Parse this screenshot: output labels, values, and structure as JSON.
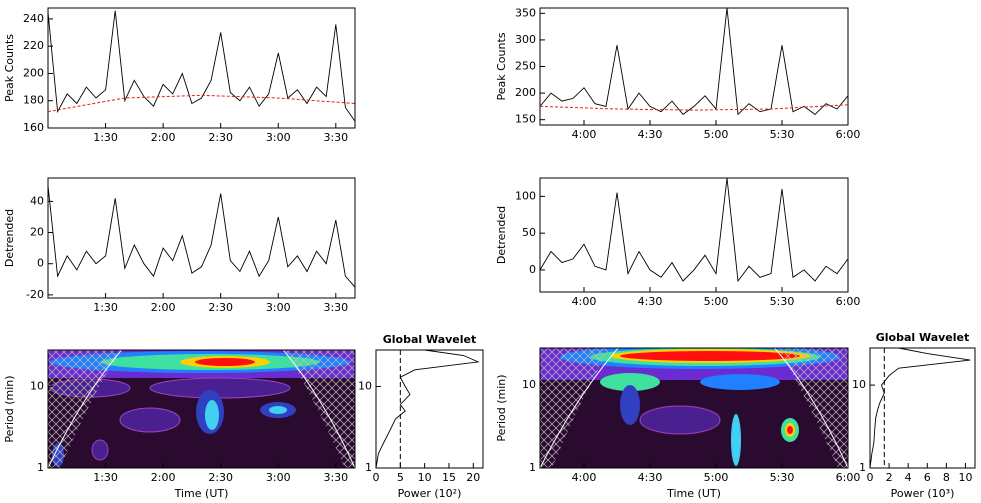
{
  "chart_data": [
    {
      "type": "line",
      "y_label": "Peak Counts",
      "xlim": [
        60,
        220
      ],
      "ylim": [
        160,
        248
      ],
      "xticks": [
        {
          "value": 90,
          "label": "1:30"
        },
        {
          "value": 120,
          "label": "2:00"
        },
        {
          "value": 150,
          "label": "2:30"
        },
        {
          "value": 180,
          "label": "3:00"
        },
        {
          "value": 210,
          "label": "3:30"
        }
      ],
      "yticks": [
        160,
        180,
        200,
        220,
        240
      ],
      "series": [
        {
          "color": "#000000",
          "x": [
            60,
            65,
            70,
            75,
            80,
            85,
            90,
            95,
            100,
            105,
            110,
            115,
            120,
            125,
            130,
            135,
            140,
            145,
            150,
            155,
            160,
            165,
            170,
            175,
            180,
            185,
            190,
            195,
            200,
            205,
            210,
            215,
            220
          ],
          "values": [
            245,
            172,
            185,
            178,
            190,
            182,
            188,
            246,
            180,
            195,
            183,
            176,
            192,
            185,
            200,
            178,
            182,
            195,
            230,
            186,
            180,
            190,
            176,
            185,
            215,
            182,
            188,
            178,
            190,
            183,
            236,
            175,
            165
          ]
        },
        {
          "color": "#e02020",
          "x": [
            60,
            100,
            140,
            180,
            220
          ],
          "values": [
            172,
            182,
            184,
            182,
            178
          ]
        }
      ]
    },
    {
      "type": "line",
      "y_label": "Detrended",
      "xlim": [
        60,
        220
      ],
      "ylim": [
        -22,
        55
      ],
      "xticks": [
        {
          "value": 90,
          "label": "1:30"
        },
        {
          "value": 120,
          "label": "2:00"
        },
        {
          "value": 150,
          "label": "2:30"
        },
        {
          "value": 180,
          "label": "3:00"
        },
        {
          "value": 210,
          "label": "3:30"
        }
      ],
      "yticks": [
        -20,
        0,
        20,
        40
      ],
      "series": [
        {
          "color": "#000000",
          "x": [
            60,
            65,
            70,
            75,
            80,
            85,
            90,
            95,
            100,
            105,
            110,
            115,
            120,
            125,
            130,
            135,
            140,
            145,
            150,
            155,
            160,
            165,
            170,
            175,
            180,
            185,
            190,
            195,
            200,
            205,
            210,
            215,
            220
          ],
          "values": [
            50,
            -8,
            5,
            -4,
            8,
            0,
            5,
            42,
            -3,
            12,
            0,
            -8,
            10,
            2,
            18,
            -6,
            -2,
            12,
            45,
            2,
            -5,
            8,
            -8,
            2,
            30,
            -2,
            5,
            -5,
            8,
            0,
            28,
            -8,
            -15
          ]
        }
      ]
    },
    {
      "type": "wavelet",
      "x_label": "Time (UT)",
      "y_label": "Period (min)",
      "log_y": true,
      "xlim": [
        60,
        220
      ],
      "ylim": [
        1,
        28
      ],
      "xticks": [
        {
          "value": 90,
          "label": "1:30"
        },
        {
          "value": 120,
          "label": "2:00"
        },
        {
          "value": 150,
          "label": "2:30"
        },
        {
          "value": 180,
          "label": "3:00"
        },
        {
          "value": 210,
          "label": "3:30"
        }
      ],
      "yticks": [
        1,
        10
      ]
    },
    {
      "type": "line",
      "title": "Global Wavelet",
      "x_label": "Power (10²)",
      "log_y": true,
      "xlim": [
        0,
        22
      ],
      "ylim": [
        1,
        28
      ],
      "xticks": [
        0,
        5,
        10,
        15,
        20
      ],
      "yticks": [
        1,
        10
      ],
      "threshold": 5,
      "series": [
        {
          "color": "#000000",
          "x": [
            0,
            0.5,
            1.5,
            3,
            4,
            6,
            5,
            7,
            6,
            5,
            8,
            21,
            18,
            10
          ],
          "values": [
            1,
            1.5,
            2,
            3,
            4,
            5,
            6,
            8,
            10,
            13,
            16,
            20,
            24,
            28
          ]
        }
      ]
    },
    {
      "type": "line",
      "y_label": "Peak Counts",
      "xlim": [
        220,
        360
      ],
      "ylim": [
        140,
        360
      ],
      "xticks": [
        {
          "value": 240,
          "label": "4:00"
        },
        {
          "value": 270,
          "label": "4:30"
        },
        {
          "value": 300,
          "label": "5:00"
        },
        {
          "value": 330,
          "label": "5:30"
        },
        {
          "value": 360,
          "label": "6:00"
        }
      ],
      "yticks": [
        150,
        200,
        250,
        300,
        350
      ],
      "series": [
        {
          "color": "#000000",
          "x": [
            220,
            225,
            230,
            235,
            240,
            245,
            250,
            255,
            260,
            265,
            270,
            275,
            280,
            285,
            290,
            295,
            300,
            305,
            310,
            315,
            320,
            325,
            330,
            335,
            340,
            345,
            350,
            355,
            360
          ],
          "values": [
            175,
            200,
            185,
            190,
            210,
            180,
            175,
            290,
            170,
            200,
            175,
            165,
            185,
            160,
            175,
            195,
            170,
            360,
            160,
            180,
            165,
            170,
            290,
            165,
            175,
            160,
            180,
            170,
            195
          ]
        },
        {
          "color": "#e02020",
          "x": [
            220,
            255,
            290,
            325,
            360
          ],
          "values": [
            175,
            170,
            168,
            170,
            178
          ]
        }
      ]
    },
    {
      "type": "line",
      "y_label": "Detrended",
      "xlim": [
        220,
        360
      ],
      "ylim": [
        -30,
        125
      ],
      "xticks": [
        {
          "value": 240,
          "label": "4:00"
        },
        {
          "value": 270,
          "label": "4:30"
        },
        {
          "value": 300,
          "label": "5:00"
        },
        {
          "value": 330,
          "label": "5:30"
        },
        {
          "value": 360,
          "label": "6:00"
        }
      ],
      "yticks": [
        0,
        50,
        100
      ],
      "series": [
        {
          "color": "#000000",
          "x": [
            220,
            225,
            230,
            235,
            240,
            245,
            250,
            255,
            260,
            265,
            270,
            275,
            280,
            285,
            290,
            295,
            300,
            305,
            310,
            315,
            320,
            325,
            330,
            335,
            340,
            345,
            350,
            355,
            360
          ],
          "values": [
            0,
            25,
            10,
            15,
            35,
            5,
            0,
            105,
            -5,
            25,
            0,
            -10,
            10,
            -15,
            0,
            20,
            -5,
            125,
            -15,
            5,
            -10,
            -5,
            110,
            -10,
            0,
            -15,
            5,
            -5,
            15
          ]
        }
      ]
    },
    {
      "type": "wavelet",
      "x_label": "Time (UT)",
      "y_label": "Period (min)",
      "log_y": true,
      "xlim": [
        220,
        360
      ],
      "ylim": [
        1,
        28
      ],
      "xticks": [
        {
          "value": 240,
          "label": "4:00"
        },
        {
          "value": 270,
          "label": "4:30"
        },
        {
          "value": 300,
          "label": "5:00"
        },
        {
          "value": 330,
          "label": "5:30"
        },
        {
          "value": 360,
          "label": "6:00"
        }
      ],
      "yticks": [
        1,
        10
      ]
    },
    {
      "type": "line",
      "title": "Global Wavelet",
      "x_label": "Power (10³)",
      "log_y": true,
      "xlim": [
        0,
        11
      ],
      "ylim": [
        1,
        28
      ],
      "xticks": [
        0,
        2,
        4,
        6,
        8,
        10
      ],
      "yticks": [
        1,
        10
      ],
      "threshold": 1.5,
      "series": [
        {
          "color": "#000000",
          "x": [
            0,
            0.2,
            0.4,
            0.5,
            0.6,
            0.8,
            1,
            1.5,
            1.2,
            2,
            3,
            10.5,
            6,
            3
          ],
          "values": [
            1,
            1.5,
            2,
            3,
            4,
            5,
            6,
            8,
            10,
            13,
            16,
            20,
            24,
            28
          ]
        }
      ]
    }
  ]
}
